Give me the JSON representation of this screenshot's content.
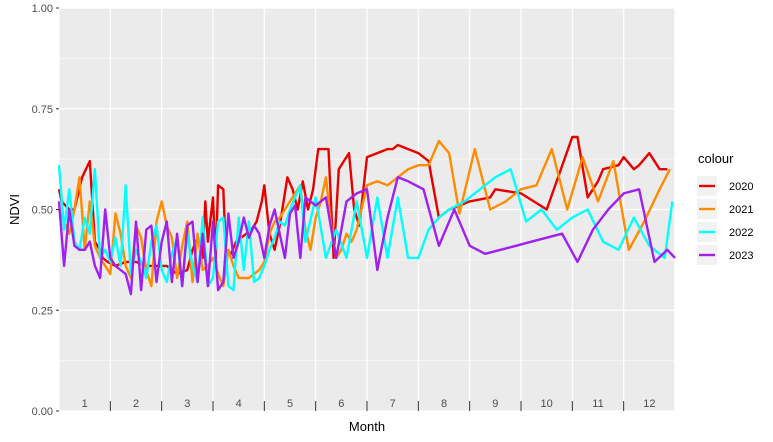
{
  "chart_data": {
    "type": "line",
    "xlabel": "Month",
    "ylabel": "NDVI",
    "ylim": [
      0,
      1
    ],
    "yticks": [
      "0.00",
      "0.25",
      "0.50",
      "0.75",
      "1.00"
    ],
    "xlim": [
      0.5,
      12.5
    ],
    "categories": [
      "1",
      "2",
      "3",
      "4",
      "5",
      "6",
      "7",
      "8",
      "9",
      "10",
      "11",
      "12"
    ],
    "grid": true,
    "legend": {
      "title": "colour",
      "placement": "right"
    },
    "series": [
      {
        "name": "2020",
        "color": "#e60000",
        "x": [
          0.5,
          0.55,
          0.7,
          0.8,
          0.95,
          1.1,
          1.2,
          1.3,
          1.35,
          1.45,
          1.6,
          1.8,
          2.0,
          2.2,
          2.4,
          2.6,
          2.8,
          3.0,
          3.1,
          3.2,
          3.3,
          3.35,
          3.4,
          3.5,
          3.55,
          3.6,
          3.7,
          3.75,
          3.85,
          3.95,
          4.05,
          4.15,
          4.25,
          4.35,
          4.45,
          4.5,
          4.6,
          4.7,
          4.8,
          4.85,
          4.95,
          5.05,
          5.15,
          5.25,
          5.35,
          5.45,
          5.55,
          5.65,
          5.75,
          5.85,
          5.95,
          6.05,
          6.15,
          6.25,
          6.35,
          6.5,
          6.7,
          6.9,
          7.0,
          7.1,
          7.3,
          7.5,
          7.7,
          7.9,
          8.1,
          8.3,
          8.5,
          8.9,
          9.0,
          9.5,
          10.0,
          10.5,
          10.6,
          10.8,
          11.0,
          11.1,
          11.4,
          11.5,
          11.7,
          11.8,
          12.0,
          12.2,
          12.35
        ],
        "values": [
          0.55,
          0.52,
          0.5,
          0.5,
          0.58,
          0.62,
          0.42,
          0.4,
          0.38,
          0.37,
          0.36,
          0.37,
          0.37,
          0.36,
          0.36,
          0.36,
          0.34,
          0.35,
          0.4,
          0.43,
          0.38,
          0.52,
          0.42,
          0.53,
          0.37,
          0.56,
          0.55,
          0.4,
          0.39,
          0.42,
          0.43,
          0.44,
          0.45,
          0.47,
          0.52,
          0.56,
          0.44,
          0.4,
          0.46,
          0.5,
          0.58,
          0.55,
          0.5,
          0.57,
          0.5,
          0.55,
          0.65,
          0.65,
          0.65,
          0.38,
          0.6,
          0.62,
          0.64,
          0.5,
          0.46,
          0.63,
          0.64,
          0.65,
          0.65,
          0.66,
          0.65,
          0.64,
          0.62,
          0.48,
          0.5,
          0.51,
          0.52,
          0.53,
          0.55,
          0.54,
          0.5,
          0.68,
          0.68,
          0.53,
          0.57,
          0.6,
          0.61,
          0.63,
          0.6,
          0.61,
          0.64,
          0.6,
          0.6
        ]
      },
      {
        "name": "2021",
        "color": "#ff8c00",
        "x": [
          0.5,
          0.6,
          0.7,
          0.8,
          0.9,
          1.0,
          1.1,
          1.2,
          1.3,
          1.4,
          1.5,
          1.6,
          1.7,
          1.8,
          1.9,
          2.0,
          2.1,
          2.2,
          2.3,
          2.4,
          2.5,
          2.6,
          2.7,
          2.8,
          2.9,
          3.0,
          3.1,
          3.2,
          3.3,
          3.4,
          3.5,
          3.6,
          3.7,
          3.8,
          3.9,
          4.0,
          4.1,
          4.2,
          4.3,
          4.4,
          4.5,
          4.6,
          4.7,
          4.8,
          4.9,
          5.0,
          5.1,
          5.2,
          5.3,
          5.4,
          5.5,
          5.6,
          5.7,
          5.8,
          5.9,
          6.0,
          6.1,
          6.2,
          6.3,
          6.5,
          6.7,
          6.9,
          7.1,
          7.3,
          7.5,
          7.7,
          7.9,
          8.1,
          8.3,
          8.6,
          8.9,
          9.2,
          9.5,
          9.8,
          10.1,
          10.4,
          10.7,
          11.0,
          11.3,
          11.6,
          11.9,
          12.2,
          12.4
        ],
        "values": [
          0.5,
          0.47,
          0.44,
          0.5,
          0.58,
          0.4,
          0.52,
          0.41,
          0.38,
          0.36,
          0.34,
          0.49,
          0.44,
          0.36,
          0.33,
          0.46,
          0.43,
          0.35,
          0.31,
          0.47,
          0.52,
          0.46,
          0.43,
          0.33,
          0.41,
          0.47,
          0.32,
          0.44,
          0.35,
          0.36,
          0.38,
          0.34,
          0.31,
          0.4,
          0.36,
          0.33,
          0.33,
          0.33,
          0.34,
          0.35,
          0.37,
          0.44,
          0.47,
          0.48,
          0.5,
          0.52,
          0.54,
          0.56,
          0.45,
          0.4,
          0.48,
          0.52,
          0.58,
          0.46,
          0.38,
          0.4,
          0.44,
          0.42,
          0.45,
          0.56,
          0.57,
          0.56,
          0.58,
          0.6,
          0.61,
          0.61,
          0.67,
          0.64,
          0.49,
          0.65,
          0.5,
          0.52,
          0.55,
          0.56,
          0.65,
          0.5,
          0.63,
          0.52,
          0.62,
          0.4,
          0.47,
          0.55,
          0.6
        ]
      },
      {
        "name": "2022",
        "color": "#00ffff",
        "x": [
          0.5,
          0.6,
          0.7,
          0.8,
          0.9,
          1.0,
          1.1,
          1.2,
          1.3,
          1.4,
          1.5,
          1.6,
          1.7,
          1.8,
          1.9,
          2.0,
          2.1,
          2.2,
          2.3,
          2.4,
          2.5,
          2.6,
          2.7,
          2.8,
          2.9,
          3.0,
          3.1,
          3.2,
          3.3,
          3.4,
          3.5,
          3.6,
          3.7,
          3.8,
          3.9,
          4.0,
          4.1,
          4.2,
          4.3,
          4.4,
          4.5,
          4.6,
          4.7,
          4.8,
          4.9,
          5.0,
          5.1,
          5.2,
          5.3,
          5.5,
          5.7,
          5.9,
          6.1,
          6.3,
          6.5,
          6.7,
          6.9,
          7.1,
          7.3,
          7.5,
          7.7,
          7.9,
          8.1,
          8.4,
          8.7,
          9.0,
          9.3,
          9.6,
          9.9,
          10.2,
          10.5,
          10.8,
          11.1,
          11.4,
          11.7,
          12.0,
          12.3,
          12.45
        ],
        "values": [
          0.61,
          0.45,
          0.55,
          0.42,
          0.4,
          0.48,
          0.44,
          0.6,
          0.38,
          0.4,
          0.37,
          0.43,
          0.36,
          0.56,
          0.34,
          0.4,
          0.37,
          0.33,
          0.42,
          0.46,
          0.35,
          0.32,
          0.39,
          0.43,
          0.31,
          0.44,
          0.36,
          0.32,
          0.48,
          0.31,
          0.33,
          0.47,
          0.48,
          0.31,
          0.3,
          0.48,
          0.35,
          0.47,
          0.32,
          0.33,
          0.36,
          0.4,
          0.43,
          0.47,
          0.46,
          0.5,
          0.53,
          0.56,
          0.42,
          0.53,
          0.38,
          0.45,
          0.38,
          0.52,
          0.38,
          0.53,
          0.38,
          0.53,
          0.38,
          0.38,
          0.45,
          0.48,
          0.5,
          0.52,
          0.55,
          0.58,
          0.6,
          0.47,
          0.5,
          0.45,
          0.48,
          0.5,
          0.42,
          0.4,
          0.48,
          0.41,
          0.38,
          0.52
        ]
      },
      {
        "name": "2023",
        "color": "#a020f0",
        "x": [
          0.5,
          0.6,
          0.7,
          0.8,
          0.9,
          1.0,
          1.1,
          1.2,
          1.3,
          1.4,
          1.5,
          1.6,
          1.7,
          1.8,
          1.9,
          2.0,
          2.1,
          2.2,
          2.3,
          2.4,
          2.5,
          2.6,
          2.7,
          2.8,
          2.9,
          3.0,
          3.1,
          3.2,
          3.3,
          3.4,
          3.5,
          3.6,
          3.7,
          3.8,
          3.9,
          4.0,
          4.1,
          4.2,
          4.3,
          4.4,
          4.5,
          4.6,
          4.7,
          4.8,
          4.9,
          5.0,
          5.1,
          5.2,
          5.3,
          5.5,
          5.7,
          5.9,
          6.1,
          6.3,
          6.5,
          6.7,
          6.9,
          7.1,
          7.3,
          7.6,
          7.9,
          8.2,
          8.5,
          8.8,
          9.1,
          9.4,
          9.7,
          10.0,
          10.3,
          10.6,
          10.9,
          11.2,
          11.5,
          11.8,
          12.1,
          12.35,
          12.5
        ],
        "values": [
          0.52,
          0.36,
          0.5,
          0.41,
          0.4,
          0.4,
          0.42,
          0.36,
          0.33,
          0.5,
          0.38,
          0.36,
          0.35,
          0.34,
          0.29,
          0.47,
          0.3,
          0.45,
          0.46,
          0.32,
          0.42,
          0.47,
          0.32,
          0.44,
          0.31,
          0.46,
          0.47,
          0.32,
          0.44,
          0.31,
          0.47,
          0.3,
          0.32,
          0.49,
          0.38,
          0.42,
          0.48,
          0.43,
          0.46,
          0.44,
          0.38,
          0.46,
          0.5,
          0.44,
          0.38,
          0.49,
          0.51,
          0.38,
          0.53,
          0.51,
          0.53,
          0.38,
          0.52,
          0.54,
          0.55,
          0.35,
          0.48,
          0.58,
          0.57,
          0.55,
          0.41,
          0.5,
          0.41,
          0.39,
          0.4,
          0.41,
          0.42,
          0.43,
          0.44,
          0.37,
          0.45,
          0.5,
          0.54,
          0.55,
          0.37,
          0.4,
          0.38
        ]
      }
    ]
  }
}
